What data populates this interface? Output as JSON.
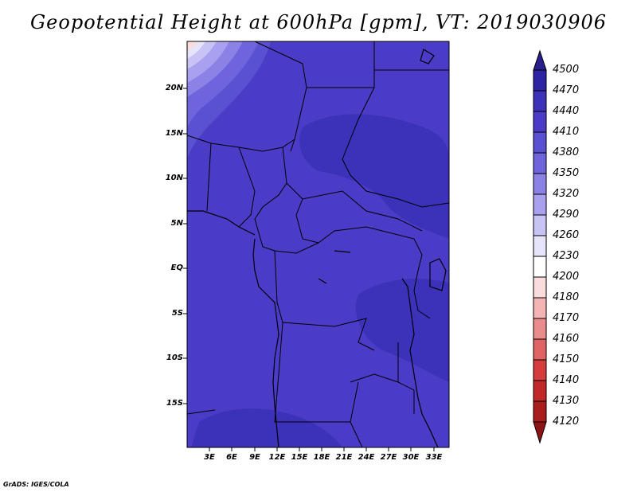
{
  "title": "Geopotential Height at 600hPa [gpm], VT: 2019030906",
  "footer": "GrADS: IGES/COLA",
  "lat_labels": [
    "20N",
    "15N",
    "10N",
    "5N",
    "EQ",
    "5S",
    "10S",
    "15S"
  ],
  "lon_labels": [
    "3E",
    "6E",
    "9E",
    "12E",
    "15E",
    "18E",
    "21E",
    "24E",
    "27E",
    "30E",
    "33E"
  ],
  "colorbar": {
    "levels": [
      "4500",
      "4470",
      "4440",
      "4410",
      "4380",
      "4350",
      "4320",
      "4290",
      "4260",
      "4230",
      "4200",
      "4180",
      "4170",
      "4160",
      "4150",
      "4140",
      "4130",
      "4120"
    ],
    "colors": [
      "#281e8c",
      "#2d23a5",
      "#3c32b9",
      "#4b3cc8",
      "#5a50d2",
      "#6e64dc",
      "#8c82e6",
      "#aaa0f0",
      "#c8c3f5",
      "#e6e4fa",
      "#ffffff",
      "#fadcdc",
      "#f5b4b4",
      "#eb8c8c",
      "#e16464",
      "#d73c3c",
      "#c32828",
      "#aa1e1e",
      "#8c1414"
    ]
  },
  "map": {
    "background": "#4b3cc8",
    "region": "West/Central Africa",
    "lon_range": [
      0,
      35
    ],
    "lat_range": [
      -20,
      24
    ]
  }
}
